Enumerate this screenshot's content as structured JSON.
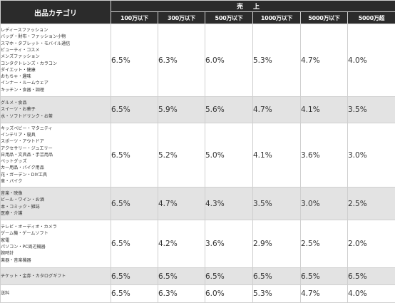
{
  "table": {
    "header": {
      "category": "出品カテゴリ",
      "sales": "売上",
      "tiers": [
        "100万以下",
        "300万以下",
        "500万以下",
        "1000万以下",
        "5000万以下",
        "5000万超"
      ]
    },
    "rows": [
      {
        "categories": [
          "レディースファッション",
          "バッグ・財布・ファッション小物",
          "スマホ・タブレット・モバイル通信",
          "ビューティ・コスメ",
          "メンズファッション",
          "コンタクトレンズ・カラコン",
          "ダイエット・健康",
          "おもちゃ・趣味",
          "インナー・ルームウェア",
          "キッチン・食器・調理"
        ],
        "rates": [
          "6.5%",
          "6.3%",
          "6.0%",
          "5.3%",
          "4.7%",
          "4.0%"
        ]
      },
      {
        "categories": [
          "グルメ・食品",
          "スイーツ・お菓子",
          "水・ソフトドリンク・お茶"
        ],
        "rates": [
          "6.5%",
          "5.9%",
          "5.6%",
          "4.7%",
          "4.1%",
          "3.5%"
        ]
      },
      {
        "categories": [
          "キッズベビー・マタニティ",
          "インテリア・寝具",
          "スポーツ・アウトドア",
          "アクセサリー・ジュエリー",
          "日用品・文具品・手芸用品",
          "ペットグッズ",
          "カー用品・バイク用品",
          "花・ガーデン・DIY工具",
          "車・バイク"
        ],
        "rates": [
          "6.5%",
          "5.2%",
          "5.0%",
          "4.1%",
          "3.6%",
          "3.0%"
        ]
      },
      {
        "categories": [
          "音楽・映像",
          "ビール・ワイン・お酒",
          "本・コミック・雑誌",
          "医療・介護"
        ],
        "rates": [
          "6.5%",
          "4.7%",
          "4.3%",
          "3.5%",
          "3.0%",
          "2.5%"
        ]
      },
      {
        "categories": [
          "テレビ・オーディオ・カメラ",
          "ゲーム機・ゲームソフト",
          "家電",
          "パソコン・PC周辺機器",
          "腕時計",
          "楽器・音楽機器"
        ],
        "rates": [
          "6.5%",
          "4.2%",
          "3.6%",
          "2.9%",
          "2.5%",
          "2.0%"
        ]
      },
      {
        "categories": [
          "チケット・金券・カタログギフト"
        ],
        "rates": [
          "6.5%",
          "6.5%",
          "6.5%",
          "6.5%",
          "6.5%",
          "6.5%"
        ]
      },
      {
        "categories": [
          "送料"
        ],
        "rates": [
          "6.5%",
          "6.3%",
          "6.0%",
          "5.3%",
          "4.7%",
          "4.0%"
        ]
      }
    ]
  }
}
